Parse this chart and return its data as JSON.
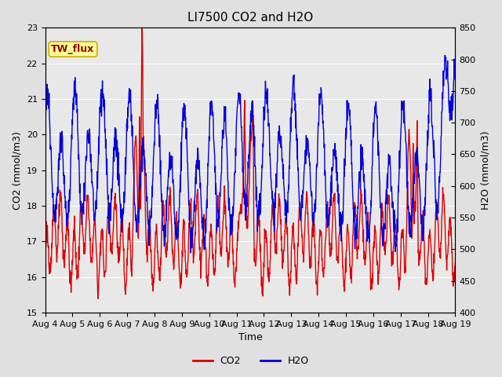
{
  "title": "LI7500 CO2 and H2O",
  "xlabel": "Time",
  "ylabel_left": "CO2 (mmol/m3)",
  "ylabel_right": "H2O (mmol/m3)",
  "ylim_left": [
    15.0,
    23.0
  ],
  "ylim_right": [
    400,
    850
  ],
  "yticks_left": [
    15.0,
    16.0,
    17.0,
    18.0,
    19.0,
    20.0,
    21.0,
    22.0,
    23.0
  ],
  "yticks_right": [
    400,
    450,
    500,
    550,
    600,
    650,
    700,
    750,
    800,
    850
  ],
  "xtick_labels": [
    "Aug 4",
    "Aug 5",
    "Aug 6",
    "Aug 7",
    "Aug 8",
    "Aug 9",
    "Aug 10",
    "Aug 11",
    "Aug 12",
    "Aug 13",
    "Aug 14",
    "Aug 15",
    "Aug 16",
    "Aug 17",
    "Aug 18",
    "Aug 19"
  ],
  "co2_color": "#dd0000",
  "h2o_color": "#0000dd",
  "line_width": 1.0,
  "outer_bg_color": "#e0e0e0",
  "plot_bg_color": "#e8e8e8",
  "annotation_text": "TW_flux",
  "annotation_bg": "#ffff99",
  "annotation_border": "#ccaa00",
  "title_fontsize": 11,
  "label_fontsize": 9,
  "tick_fontsize": 8,
  "legend_fontsize": 9,
  "n_days": 15,
  "n_per_day": 96
}
